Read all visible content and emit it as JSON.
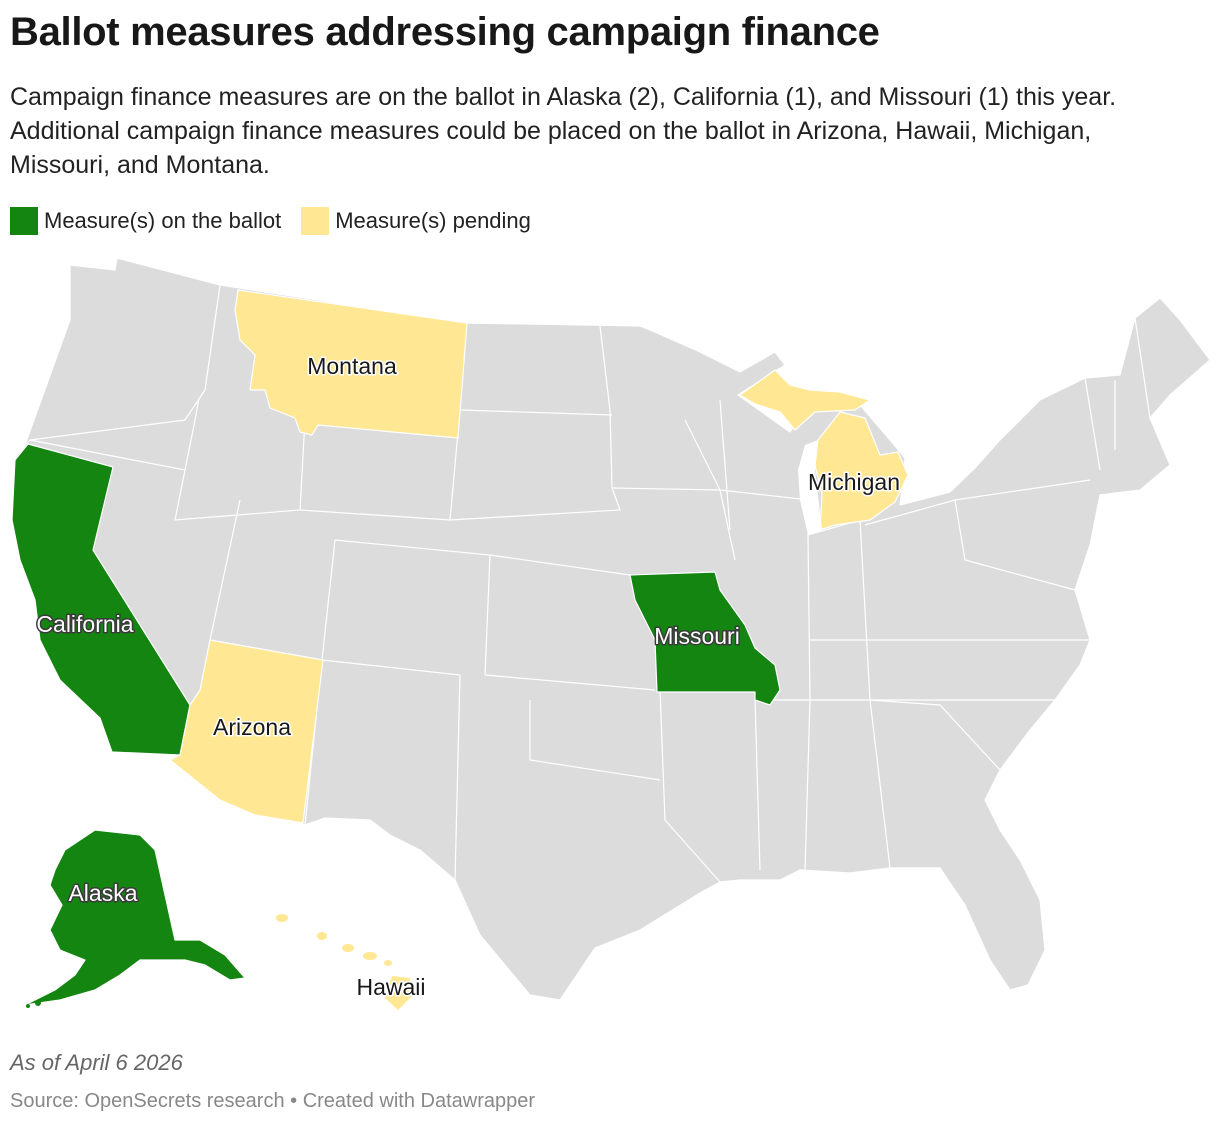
{
  "title": "Ballot measures addressing campaign finance",
  "subtitle": "Campaign finance measures are on the ballot in Alaska (2), California (1), and Missouri (1) this year. Additional campaign finance measures could be placed on the ballot in Arizona, Hawaii, Michigan, Missouri, and Montana.",
  "legend": [
    {
      "label": "Measure(s) on the ballot",
      "color": "#138510"
    },
    {
      "label": "Measure(s) pending",
      "color": "#ffe794"
    }
  ],
  "colors": {
    "ballot": "#138510",
    "pending": "#ffe794",
    "none": "#dcdcdc"
  },
  "labels": {
    "montana": "Montana",
    "michigan": "Michigan",
    "california": "California",
    "missouri": "Missouri",
    "arizona": "Arizona",
    "alaska": "Alaska",
    "hawaii": "Hawaii"
  },
  "notes": "As of April 6 2026",
  "source": "Source: OpenSecrets research • Created with Datawrapper"
}
